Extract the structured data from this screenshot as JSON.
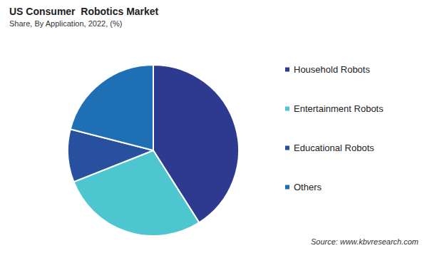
{
  "chart_data": {
    "type": "pie",
    "title": "US Consumer  Robotics Market",
    "subtitle": "Share, By Application, 2022, (%)",
    "categories": [
      "Household Robots",
      "Entertainment Robots",
      "Educational Robots",
      "Others"
    ],
    "values": [
      41,
      28,
      10,
      21
    ],
    "colors": [
      "#2e3a8f",
      "#4ec6d0",
      "#27509f",
      "#1f6fb4"
    ],
    "legend": "right",
    "data_labels": false,
    "source": "Source: www.kbvresearch.com"
  }
}
